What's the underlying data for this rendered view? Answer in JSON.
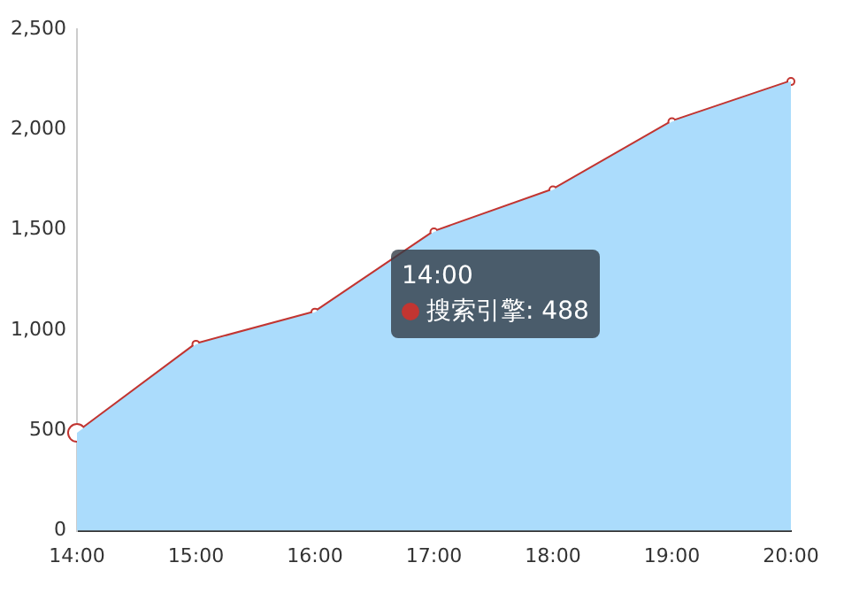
{
  "chart_data": {
    "type": "area",
    "categories": [
      "14:00",
      "15:00",
      "16:00",
      "17:00",
      "18:00",
      "19:00",
      "20:00"
    ],
    "series": [
      {
        "color": "#abdcfc",
        "values": [
          488,
          930,
          1090,
          1490,
          1700,
          2040,
          2240
        ]
      },
      {
        "type": "line",
        "color": "#c23531",
        "marker": "circle",
        "values": [
          488,
          930,
          1090,
          1490,
          1700,
          2040,
          2240
        ]
      }
    ],
    "ylim": [
      0,
      2500
    ],
    "yticks": [
      0,
      500,
      {
        "value": 1000,
        "label": "1,000"
      },
      {
        "value": 1500,
        "label": "1,500"
      },
      {
        "value": 2000,
        "label": "2,000"
      },
      {
        "value": 2500,
        "label": "2,500"
      }
    ],
    "grid": false,
    "legend": false,
    "annotations": [
      "14:00",
      "搜索引擎: 488"
    ]
  }
}
